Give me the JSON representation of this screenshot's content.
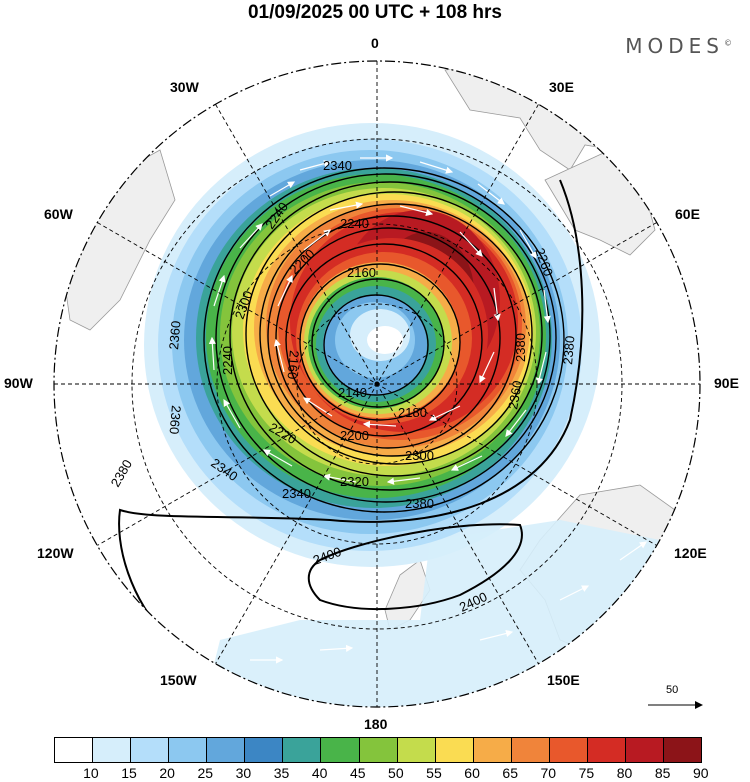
{
  "title": "01/09/2025  00 UTC  + 108 hrs",
  "brand": "MODES",
  "brand_mark": "©",
  "longitude_labels": {
    "lon_0": "0",
    "lon_30e": "30E",
    "lon_60e": "60E",
    "lon_90e": "90E",
    "lon_120e": "120E",
    "lon_150e": "150E",
    "lon_180": "180",
    "lon_150w": "150W",
    "lon_120w": "120W",
    "lon_90w": "90W",
    "lon_60w": "60W",
    "lon_30w": "30W"
  },
  "contour_labels": [
    "2340",
    "2240",
    "2240",
    "2260",
    "2200",
    "2300",
    "2160",
    "2360",
    "2160",
    "2240",
    "2360",
    "2140",
    "2180",
    "2200",
    "2220",
    "2300",
    "2340",
    "2320",
    "2340",
    "2380",
    "2380",
    "2400",
    "2400",
    "2380",
    "2360",
    "2380"
  ],
  "reference_vector": "50",
  "colorbar": {
    "ticks": [
      "10",
      "15",
      "20",
      "25",
      "30",
      "35",
      "40",
      "45",
      "50",
      "55",
      "60",
      "65",
      "70",
      "75",
      "80",
      "85",
      "90"
    ],
    "colors": [
      "#ffffff",
      "#d6eefb",
      "#b4defa",
      "#8cc8f0",
      "#62a7dc",
      "#3c86c4",
      "#3aa39a",
      "#49b449",
      "#84c43c",
      "#c4dc4c",
      "#fadc52",
      "#f6ac48",
      "#f0843a",
      "#e8582c",
      "#d42c24",
      "#b81a22",
      "#8c1418"
    ]
  }
}
